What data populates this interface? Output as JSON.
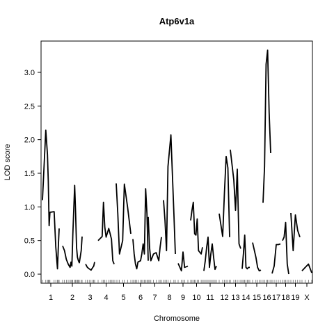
{
  "chart_data": {
    "type": "line",
    "title": "Atp6v1a",
    "xlabel": "Chromosome",
    "ylabel": "LOD score",
    "ylim": [
      -0.05,
      3.45
    ],
    "yticks": [
      0.0,
      0.5,
      1.0,
      1.5,
      2.0,
      2.5,
      3.0
    ],
    "ytick_labels": [
      "0.0",
      "0.5",
      "1.0",
      "1.5",
      "2.0",
      "2.5",
      "3.0"
    ],
    "grid": false,
    "colors": {
      "line": "#000000",
      "frame": "#000000",
      "background": "#ffffff"
    },
    "chromosomes": [
      {
        "label": "1",
        "points": [
          [
            0,
            1.1
          ],
          [
            4,
            2.14
          ],
          [
            6,
            1.78
          ],
          [
            7,
            1.38
          ],
          [
            8,
            0.72
          ],
          [
            9,
            0.92
          ],
          [
            14,
            0.93
          ],
          [
            16,
            0.4
          ],
          [
            18,
            0.08
          ],
          [
            19,
            0.4
          ],
          [
            20,
            0.68
          ]
        ]
      },
      {
        "label": "2",
        "points": [
          [
            0,
            0.42
          ],
          [
            2,
            0.35
          ],
          [
            4,
            0.22
          ],
          [
            6,
            0.15
          ],
          [
            8,
            0.1
          ],
          [
            9,
            0.18
          ],
          [
            10,
            0.12
          ],
          [
            11,
            0.6
          ],
          [
            13,
            1.32
          ],
          [
            14,
            0.9
          ],
          [
            15,
            0.4
          ],
          [
            16,
            0.25
          ],
          [
            17,
            0.2
          ],
          [
            18,
            0.17
          ],
          [
            20,
            0.35
          ],
          [
            21,
            0.56
          ]
        ]
      },
      {
        "label": "3",
        "points": [
          [
            0,
            0.15
          ],
          [
            2,
            0.1
          ],
          [
            4,
            0.08
          ],
          [
            6,
            0.06
          ],
          [
            8,
            0.1
          ],
          [
            9,
            0.12
          ],
          [
            10,
            0.18
          ]
        ]
      },
      {
        "label": "4",
        "points": [
          [
            0,
            0.5
          ],
          [
            3,
            0.56
          ],
          [
            4,
            1.07
          ],
          [
            5,
            0.7
          ],
          [
            6,
            0.55
          ],
          [
            8,
            0.68
          ],
          [
            9,
            0.6
          ],
          [
            10,
            0.52
          ],
          [
            11,
            0.2
          ],
          [
            12,
            0.15
          ]
        ]
      },
      {
        "label": "5",
        "points": [
          [
            0,
            1.35
          ],
          [
            1,
            0.9
          ],
          [
            2,
            0.3
          ],
          [
            4,
            0.5
          ],
          [
            5,
            1.34
          ],
          [
            7,
            1.0
          ],
          [
            9,
            0.6
          ]
        ]
      },
      {
        "label": "6",
        "points": [
          [
            0,
            0.52
          ],
          [
            1,
            0.3
          ],
          [
            2,
            0.15
          ],
          [
            3,
            0.08
          ],
          [
            4,
            0.18
          ],
          [
            6,
            0.2
          ],
          [
            7,
            0.3
          ],
          [
            8,
            0.45
          ],
          [
            9,
            0.3
          ],
          [
            10,
            1.27
          ],
          [
            11,
            0.9
          ],
          [
            12,
            0.2
          ]
        ]
      },
      {
        "label": "7",
        "points": [
          [
            0,
            0.85
          ],
          [
            1,
            0.4
          ],
          [
            2,
            0.2
          ],
          [
            4,
            0.3
          ],
          [
            6,
            0.32
          ],
          [
            8,
            0.2
          ],
          [
            9,
            0.4
          ],
          [
            10,
            0.55
          ]
        ]
      },
      {
        "label": "8",
        "points": [
          [
            0,
            1.1
          ],
          [
            1,
            0.8
          ],
          [
            2,
            0.35
          ],
          [
            3,
            1.6
          ],
          [
            5,
            2.07
          ],
          [
            7,
            0.9
          ],
          [
            8,
            0.3
          ]
        ]
      },
      {
        "label": "9",
        "points": [
          [
            0,
            0.16
          ],
          [
            2,
            0.05
          ],
          [
            3,
            0.33
          ],
          [
            4,
            0.1
          ],
          [
            6,
            0.12
          ]
        ]
      },
      {
        "label": "10",
        "points": [
          [
            0,
            0.8
          ],
          [
            1,
            0.95
          ],
          [
            2,
            1.07
          ],
          [
            3,
            0.6
          ],
          [
            4,
            0.58
          ],
          [
            5,
            0.82
          ],
          [
            6,
            0.35
          ],
          [
            8,
            0.3
          ],
          [
            9,
            0.4
          ]
        ]
      },
      {
        "label": "11",
        "points": [
          [
            0,
            0.05
          ],
          [
            1,
            0.2
          ],
          [
            2,
            0.4
          ],
          [
            3,
            0.55
          ],
          [
            4,
            0.1
          ],
          [
            5,
            0.3
          ],
          [
            6,
            0.45
          ],
          [
            7,
            0.25
          ],
          [
            8,
            0.07
          ],
          [
            9,
            0.12
          ]
        ]
      },
      {
        "label": "12",
        "points": [
          [
            0,
            0.9
          ],
          [
            2,
            0.56
          ],
          [
            3,
            1.2
          ],
          [
            4,
            1.75
          ],
          [
            5,
            1.58
          ],
          [
            6,
            0.55
          ]
        ]
      },
      {
        "label": "13",
        "points": [
          [
            0,
            1.85
          ],
          [
            2,
            1.4
          ],
          [
            3,
            0.95
          ],
          [
            4,
            1.56
          ],
          [
            5,
            0.45
          ],
          [
            6,
            0.38
          ]
        ]
      },
      {
        "label": "14",
        "points": [
          [
            0,
            0.08
          ],
          [
            1,
            0.3
          ],
          [
            2,
            0.58
          ],
          [
            3,
            0.1
          ],
          [
            4,
            0.08
          ],
          [
            5,
            0.1
          ],
          [
            6,
            0.1
          ]
        ]
      },
      {
        "label": "15",
        "points": [
          [
            0,
            0.47
          ],
          [
            2,
            0.25
          ],
          [
            3,
            0.1
          ],
          [
            4,
            0.05
          ],
          [
            5,
            0.06
          ]
        ]
      },
      {
        "label": "16",
        "points": [
          [
            0,
            1.06
          ],
          [
            1,
            1.6
          ],
          [
            2,
            3.12
          ],
          [
            3,
            3.33
          ],
          [
            4,
            2.4
          ],
          [
            5,
            1.8
          ]
        ]
      },
      {
        "label": "17",
        "points": [
          [
            0,
            0.01
          ],
          [
            1,
            0.12
          ],
          [
            2,
            0.44
          ],
          [
            3,
            0.44
          ],
          [
            4,
            0.45
          ]
        ]
      },
      {
        "label": "18",
        "points": [
          [
            0,
            0.5
          ],
          [
            1,
            0.55
          ],
          [
            2,
            0.77
          ],
          [
            3,
            0.15
          ],
          [
            4,
            0.0
          ]
        ]
      },
      {
        "label": "19",
        "points": [
          [
            0,
            0.91
          ],
          [
            1,
            0.35
          ],
          [
            2,
            0.88
          ],
          [
            3,
            0.65
          ],
          [
            4,
            0.55
          ]
        ]
      },
      {
        "label": "X",
        "points": [
          [
            0,
            0.05
          ],
          [
            2,
            0.1
          ],
          [
            4,
            0.15
          ],
          [
            6,
            0.02
          ]
        ]
      }
    ],
    "xtick_labels_shown": [
      "1",
      "2",
      "3",
      "4",
      "5",
      "6",
      "7",
      "8",
      "9",
      "10",
      "11",
      "12",
      "13",
      "14",
      "15",
      "16",
      "17",
      "18",
      "19",
      "X"
    ]
  }
}
